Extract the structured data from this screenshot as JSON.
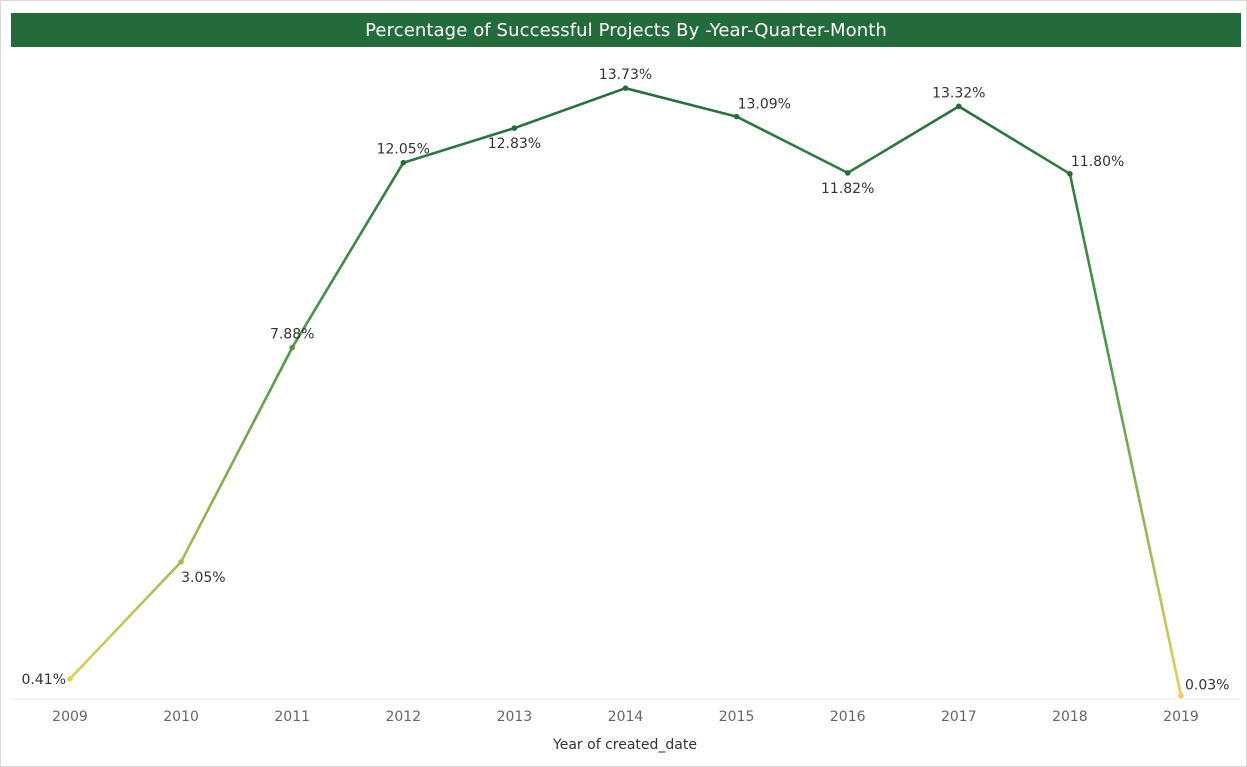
{
  "chart_data": {
    "type": "line",
    "title": "Percentage of Successful Projects By -Year-Quarter-Month",
    "xlabel": "Year of created_date",
    "ylabel": "",
    "categories": [
      "2009",
      "2010",
      "2011",
      "2012",
      "2013",
      "2014",
      "2015",
      "2016",
      "2017",
      "2018",
      "2019"
    ],
    "values": [
      0.41,
      3.05,
      7.88,
      12.05,
      12.83,
      13.73,
      13.09,
      11.82,
      13.32,
      11.8,
      0.03
    ],
    "value_labels": [
      "0.41%",
      "3.05%",
      "7.88%",
      "12.05%",
      "12.83%",
      "13.73%",
      "13.09%",
      "11.82%",
      "13.32%",
      "11.80%",
      "0.03%"
    ],
    "ylim": [
      0,
      14.14
    ],
    "grid": false,
    "legend": "none",
    "colors": {
      "low": "#e8cf5a",
      "high": "#236b3b",
      "title_bg": "#236b3b",
      "title_text": "#ffffff",
      "axis_line": "#ebebeb"
    }
  }
}
